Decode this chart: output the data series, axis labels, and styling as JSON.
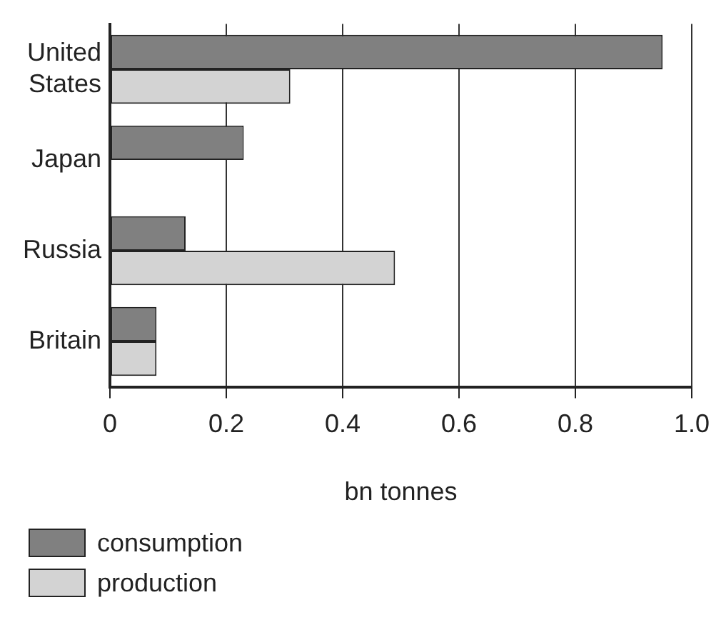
{
  "chart_data": {
    "type": "bar",
    "orientation": "horizontal",
    "categories": [
      "United States",
      "Japan",
      "Russia",
      "Britain"
    ],
    "series": [
      {
        "name": "consumption",
        "color": "#808080",
        "values": [
          0.95,
          0.23,
          0.13,
          0.08
        ]
      },
      {
        "name": "production",
        "color": "#d3d3d3",
        "values": [
          0.31,
          null,
          0.49,
          0.08
        ]
      }
    ],
    "xlabel": "bn tonnes",
    "xlim": [
      0,
      1.0
    ],
    "xticks": [
      0,
      0.2,
      0.4,
      0.6,
      0.8,
      {
        "value": 1.0,
        "label": "1.0"
      }
    ],
    "grid": "x",
    "legend": "bottom left"
  }
}
